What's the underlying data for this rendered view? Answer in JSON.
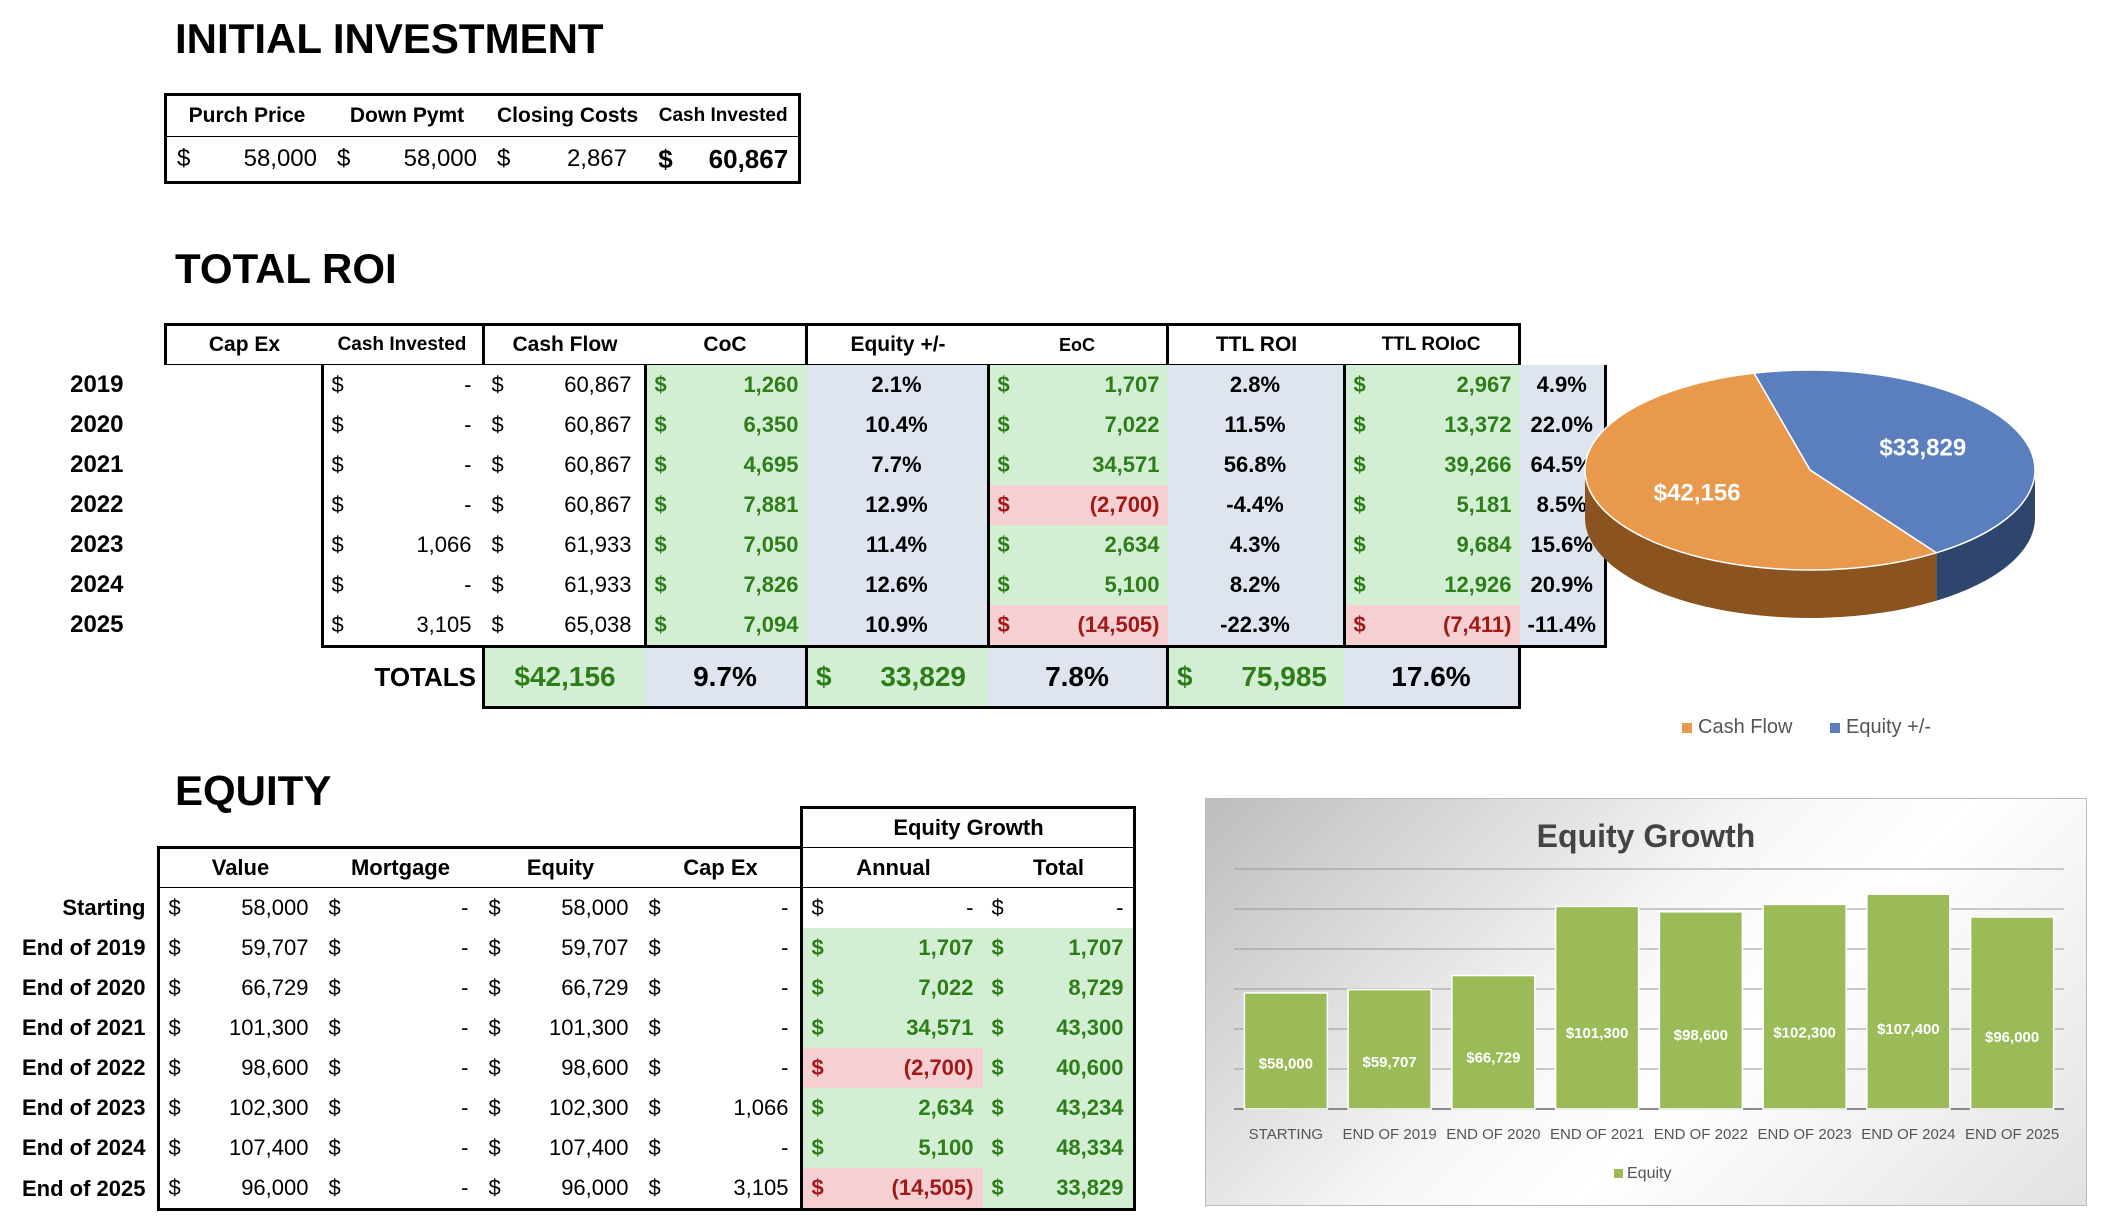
{
  "sections": {
    "initial_investment": "INITIAL INVESTMENT",
    "total_roi": "TOTAL ROI",
    "equity": "EQUITY"
  },
  "investment": {
    "headers": [
      "Purch Price",
      "Down Pymt",
      "Closing Costs",
      "Cash Invested"
    ],
    "values": [
      "58,000",
      "58,000",
      "2,867",
      "60,867"
    ]
  },
  "roi": {
    "headers": [
      "Cap Ex",
      "Cash Invested",
      "Cash Flow",
      "CoC",
      "Equity +/-",
      "EoC",
      "TTL ROI",
      "TTL ROIoC"
    ],
    "rows": [
      {
        "year": "2019",
        "capex": "-",
        "cash_invested": "60,867",
        "cash_flow": "1,260",
        "coc": "2.1%",
        "equity": "1,707",
        "eoc": "2.8%",
        "ttl_roi": "2,967",
        "ttl_roioc": "4.9%"
      },
      {
        "year": "2020",
        "capex": "-",
        "cash_invested": "60,867",
        "cash_flow": "6,350",
        "coc": "10.4%",
        "equity": "7,022",
        "eoc": "11.5%",
        "ttl_roi": "13,372",
        "ttl_roioc": "22.0%"
      },
      {
        "year": "2021",
        "capex": "-",
        "cash_invested": "60,867",
        "cash_flow": "4,695",
        "coc": "7.7%",
        "equity": "34,571",
        "eoc": "56.8%",
        "ttl_roi": "39,266",
        "ttl_roioc": "64.5%"
      },
      {
        "year": "2022",
        "capex": "-",
        "cash_invested": "60,867",
        "cash_flow": "7,881",
        "coc": "12.9%",
        "equity": "(2,700)",
        "eoc": "-4.4%",
        "ttl_roi": "5,181",
        "ttl_roioc": "8.5%"
      },
      {
        "year": "2023",
        "capex": "1,066",
        "cash_invested": "61,933",
        "cash_flow": "7,050",
        "coc": "11.4%",
        "equity": "2,634",
        "eoc": "4.3%",
        "ttl_roi": "9,684",
        "ttl_roioc": "15.6%"
      },
      {
        "year": "2024",
        "capex": "-",
        "cash_invested": "61,933",
        "cash_flow": "7,826",
        "coc": "12.6%",
        "equity": "5,100",
        "eoc": "8.2%",
        "ttl_roi": "12,926",
        "ttl_roioc": "20.9%"
      },
      {
        "year": "2025",
        "capex": "3,105",
        "cash_invested": "65,038",
        "cash_flow": "7,094",
        "coc": "10.9%",
        "equity": "(14,505)",
        "eoc": "-22.3%",
        "ttl_roi": "(7,411)",
        "ttl_roioc": "-11.4%"
      }
    ],
    "totals": {
      "label": "TOTALS",
      "cash_flow": "$42,156",
      "coc": "9.7%",
      "equity": "33,829",
      "eoc": "7.8%",
      "ttl_roi": "75,985",
      "ttl_roioc": "17.6%"
    }
  },
  "equity": {
    "group_header": "Equity Growth",
    "headers": [
      "Value",
      "Mortgage",
      "Equity",
      "Cap Ex",
      "Annual",
      "Total"
    ],
    "rows": [
      {
        "label": "Starting",
        "value": "58,000",
        "mortgage": "-",
        "equity": "58,000",
        "capex": "-",
        "annual": "-",
        "total": "-"
      },
      {
        "label": "End of 2019",
        "value": "59,707",
        "mortgage": "-",
        "equity": "59,707",
        "capex": "-",
        "annual": "1,707",
        "total": "1,707"
      },
      {
        "label": "End of 2020",
        "value": "66,729",
        "mortgage": "-",
        "equity": "66,729",
        "capex": "-",
        "annual": "7,022",
        "total": "8,729"
      },
      {
        "label": "End of 2021",
        "value": "101,300",
        "mortgage": "-",
        "equity": "101,300",
        "capex": "-",
        "annual": "34,571",
        "total": "43,300"
      },
      {
        "label": "End of 2022",
        "value": "98,600",
        "mortgage": "-",
        "equity": "98,600",
        "capex": "-",
        "annual": "(2,700)",
        "total": "40,600"
      },
      {
        "label": "End of 2023",
        "value": "102,300",
        "mortgage": "-",
        "equity": "102,300",
        "capex": "1,066",
        "annual": "2,634",
        "total": "43,234"
      },
      {
        "label": "End of 2024",
        "value": "107,400",
        "mortgage": "-",
        "equity": "107,400",
        "capex": "-",
        "annual": "5,100",
        "total": "48,334"
      },
      {
        "label": "End of 2025",
        "value": "96,000",
        "mortgage": "-",
        "equity": "96,000",
        "capex": "3,105",
        "annual": "(14,505)",
        "total": "33,829"
      }
    ]
  },
  "colors": {
    "cash_flow": "#e8994b",
    "equity_pie": "#5b7fbe",
    "bar": "#9bbb59",
    "green_fill": "#d3efd3",
    "red_fill": "#f5cfd1",
    "blue_fill": "#dfe5ef",
    "green_text": "#2e7d1a",
    "red_text": "#a11a1a"
  },
  "chart_data": [
    {
      "type": "pie",
      "title": "",
      "labels": [
        "Cash Flow",
        "Equity +/-"
      ],
      "values": [
        42156,
        33829
      ],
      "data_labels": [
        "$42,156",
        "$33,829"
      ],
      "legend_position": "bottom"
    },
    {
      "type": "bar",
      "title": "Equity Growth",
      "categories": [
        "STARTING",
        "END OF 2019",
        "END OF 2020",
        "END OF 2021",
        "END OF 2022",
        "END OF 2023",
        "END OF 2024",
        "END OF 2025"
      ],
      "series": [
        {
          "name": "Equity",
          "values": [
            58000,
            59707,
            66729,
            101300,
            98600,
            102300,
            107400,
            96000
          ]
        }
      ],
      "data_labels": [
        "$58,000",
        "$59,707",
        "$66,729",
        "$101,300",
        "$98,600",
        "$102,300",
        "$107,400",
        "$96,000"
      ],
      "ylim": [
        0,
        120000
      ],
      "legend_position": "bottom",
      "grid": true
    }
  ]
}
